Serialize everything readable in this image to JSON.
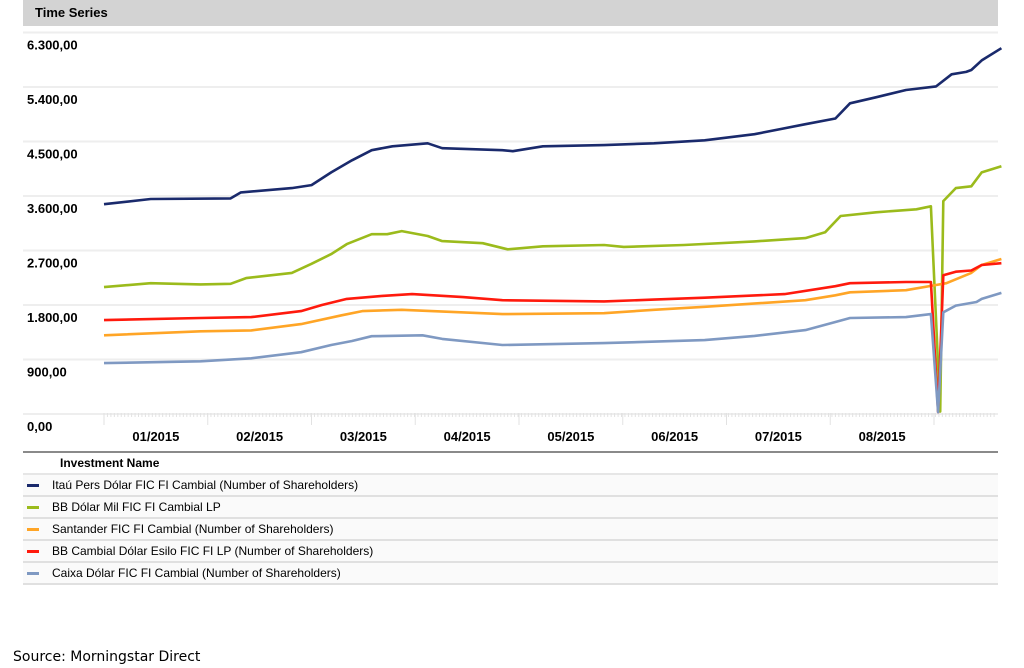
{
  "title": "Time Series",
  "source": "Source: Morningstar Direct",
  "legend_header": "Investment Name",
  "chart_data": {
    "type": "line",
    "title": "Time Series",
    "xlabel": "",
    "ylabel": "",
    "x_unit": "month of 2015 (1.0 = start of January)",
    "xlim": [
      1.0,
      9.65
    ],
    "ylim": [
      0,
      6300
    ],
    "y_ticks": [
      0,
      900,
      1800,
      2700,
      3600,
      4500,
      5400,
      6300
    ],
    "y_tick_labels": [
      "0,00",
      "900,00",
      "1.800,00",
      "2.700,00",
      "3.600,00",
      "4.500,00",
      "5.400,00",
      "6.300,00"
    ],
    "x_tick_labels": [
      "01/2015",
      "02/2015",
      "03/2015",
      "04/2015",
      "05/2015",
      "06/2015",
      "07/2015",
      "08/2015"
    ],
    "grid": true,
    "legend_position": "bottom",
    "series": [
      {
        "name": "Itaú Pers Dólar FIC FI Cambial (Number of Shareholders)",
        "color": "#1a2a6c",
        "x": [
          1.0,
          1.45,
          2.22,
          2.32,
          2.81,
          3.0,
          3.19,
          3.39,
          3.58,
          3.78,
          4.12,
          4.26,
          4.84,
          4.94,
          5.23,
          5.82,
          6.3,
          6.79,
          7.27,
          7.76,
          8.05,
          8.19,
          8.44,
          8.73,
          9.02,
          9.17,
          9.31,
          9.36,
          9.46,
          9.65
        ],
        "y": [
          3465,
          3550,
          3560,
          3660,
          3730,
          3780,
          3990,
          4190,
          4356,
          4420,
          4470,
          4390,
          4356,
          4340,
          4420,
          4440,
          4470,
          4520,
          4620,
          4785,
          4880,
          5130,
          5230,
          5350,
          5410,
          5610,
          5650,
          5680,
          5840,
          6040
        ]
      },
      {
        "name": "BB Dólar Mil FIC FI Cambial LP",
        "color": "#9bbb1c",
        "x": [
          1.0,
          1.45,
          1.93,
          2.22,
          2.37,
          2.81,
          3.0,
          3.19,
          3.34,
          3.58,
          3.73,
          3.87,
          4.12,
          4.26,
          4.65,
          4.89,
          5.23,
          5.82,
          6.01,
          6.59,
          7.27,
          7.76,
          7.95,
          8.1,
          8.44,
          8.83,
          8.97,
          9.06,
          9.09,
          9.21,
          9.36,
          9.46,
          9.65
        ],
        "y": [
          2095,
          2160,
          2140,
          2150,
          2245,
          2330,
          2480,
          2640,
          2805,
          2970,
          2970,
          3020,
          2940,
          2855,
          2820,
          2720,
          2770,
          2790,
          2760,
          2790,
          2850,
          2905,
          3000,
          3270,
          3330,
          3380,
          3430,
          40,
          3515,
          3730,
          3760,
          3990,
          4090
        ]
      },
      {
        "name": "Santander FIC FI Cambial (Number of Shareholders)",
        "color": "#ffa526",
        "x": [
          1.0,
          1.93,
          2.42,
          2.9,
          3.29,
          3.49,
          3.87,
          4.84,
          5.82,
          6.3,
          6.79,
          7.76,
          8.05,
          8.19,
          8.73,
          9.02,
          9.12,
          9.36,
          9.46,
          9.65
        ],
        "y": [
          1300,
          1365,
          1380,
          1485,
          1630,
          1700,
          1720,
          1650,
          1665,
          1720,
          1770,
          1880,
          1960,
          2010,
          2045,
          2130,
          2160,
          2330,
          2460,
          2560
        ]
      },
      {
        "name": "BB Cambial Dólar Esilo FIC FI LP (Number of Shareholders)",
        "color": "#ff1a0d",
        "x": [
          1.0,
          1.93,
          2.42,
          2.9,
          3.1,
          3.34,
          3.68,
          3.97,
          4.46,
          4.84,
          5.82,
          6.3,
          6.79,
          7.56,
          8.05,
          8.19,
          8.73,
          8.97,
          9.04,
          9.09,
          9.21,
          9.36,
          9.46,
          9.65
        ],
        "y": [
          1550,
          1585,
          1600,
          1700,
          1800,
          1900,
          1950,
          1980,
          1930,
          1880,
          1860,
          1890,
          1920,
          1980,
          2110,
          2160,
          2180,
          2180,
          30,
          2290,
          2350,
          2370,
          2460,
          2490
        ]
      },
      {
        "name": "Caixa Dólar FIC FI Cambial (Number of Shareholders)",
        "color": "#7f99c2",
        "x": [
          1.0,
          1.93,
          2.42,
          2.9,
          3.19,
          3.39,
          3.58,
          4.07,
          4.26,
          4.84,
          5.82,
          6.79,
          7.27,
          7.76,
          8.05,
          8.19,
          8.73,
          8.97,
          9.04,
          9.09,
          9.21,
          9.41,
          9.46,
          9.65
        ],
        "y": [
          840,
          870,
          920,
          1020,
          1140,
          1205,
          1285,
          1300,
          1240,
          1140,
          1170,
          1220,
          1290,
          1385,
          1520,
          1585,
          1600,
          1650,
          30,
          1680,
          1790,
          1850,
          1900,
          2000
        ]
      }
    ]
  }
}
